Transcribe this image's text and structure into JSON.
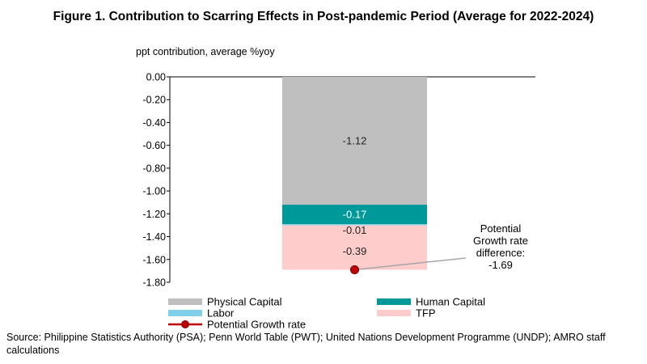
{
  "title": "Figure 1. Contribution to Scarring Effects in Post-pandemic Period (Average for 2022-2024)",
  "source": "Source: Philippine Statistics Authority (PSA); Penn World Table (PWT); United Nations Development Programme (UNDP); AMRO staff calculations",
  "chart_data": {
    "type": "bar",
    "stacked": true,
    "ylabel": "ppt contribution, average %yoy",
    "ylim": [
      -1.8,
      0.0
    ],
    "yticks": [
      "0.00",
      "-0.20",
      "-0.40",
      "-0.60",
      "-0.80",
      "-1.00",
      "-1.20",
      "-1.40",
      "-1.60",
      "-1.80"
    ],
    "ytick_values": [
      0,
      -0.2,
      -0.4,
      -0.6,
      -0.8,
      -1.0,
      -1.2,
      -1.4,
      -1.6,
      -1.8
    ],
    "grid": false,
    "legend_placement": "bottom",
    "series": [
      {
        "name": "Physical Capital",
        "values": [
          -1.12
        ],
        "label": "-1.12",
        "color": "#bfbfbf"
      },
      {
        "name": "Human Capital",
        "values": [
          -0.17
        ],
        "label": "-0.17",
        "color": "#009999"
      },
      {
        "name": "Labor",
        "values": [
          -0.01
        ],
        "label": "-0.01",
        "color": "#7fd0e8"
      },
      {
        "name": "TFP",
        "values": [
          -0.39
        ],
        "label": "-0.39",
        "color": "#ffcccc"
      }
    ],
    "line_series": {
      "name": "Potential Growth rate",
      "values": [
        -1.69
      ],
      "color": "#c00000"
    },
    "annotation": {
      "lines": [
        "Potential",
        "Growth rate",
        "difference:",
        "-1.69"
      ]
    }
  }
}
